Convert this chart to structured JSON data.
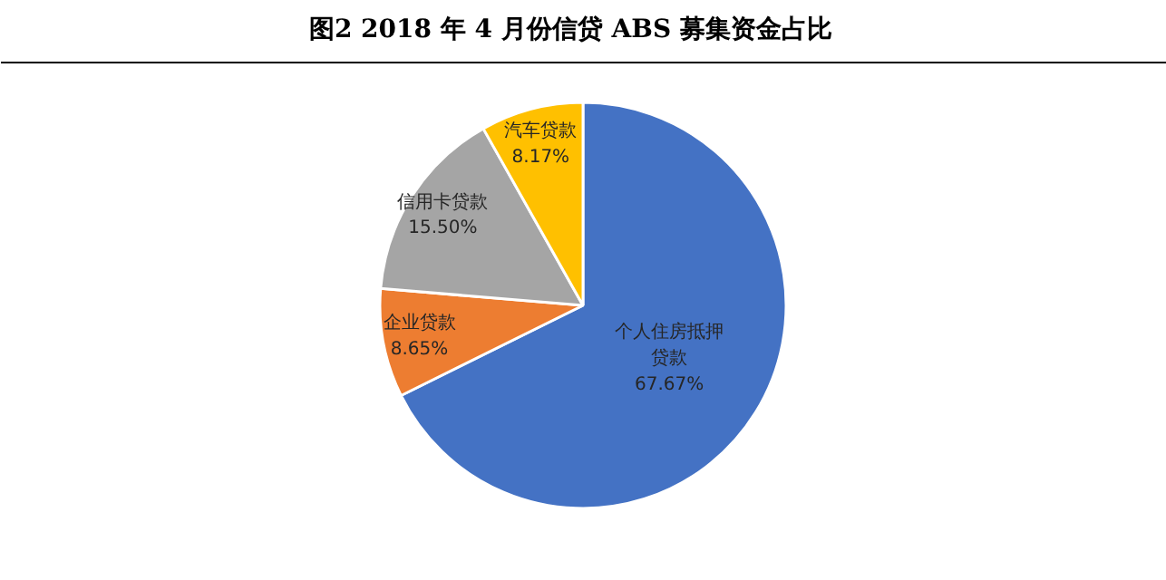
{
  "chart_data": {
    "type": "pie",
    "title": "图2    2018 年 4 月份信贷 ABS 募集资金占比",
    "categories": [
      "个人住房抵押贷款",
      "企业贷款",
      "信用卡贷款",
      "汽车贷款"
    ],
    "values": [
      67.67,
      8.65,
      15.5,
      8.17
    ],
    "colors": [
      "#4472c4",
      "#ed7d31",
      "#a5a5a5",
      "#ffc000"
    ],
    "value_labels": [
      "67.67%",
      "8.65%",
      "15.50%",
      "8.17%"
    ]
  }
}
